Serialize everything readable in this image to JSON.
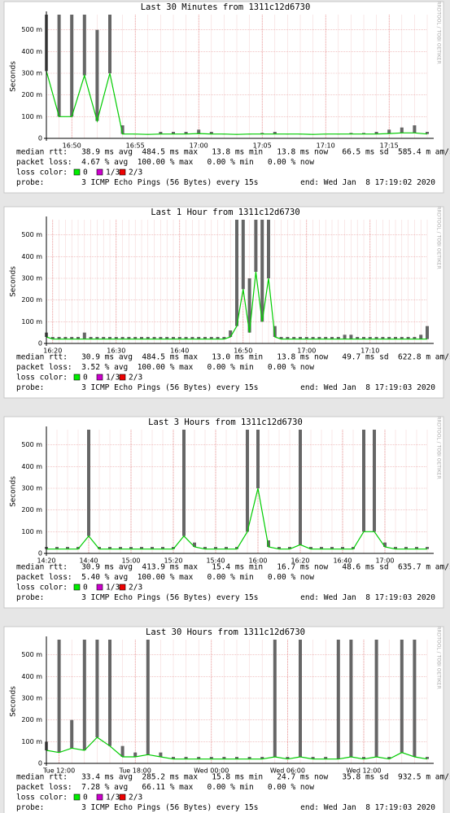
{
  "chart_data": [
    {
      "type": "line",
      "title": "Last 30 Minutes from 1311c12d6730",
      "ylabel": "Seconds",
      "watermark": "RRDTOOL / TOBI OETIKER",
      "categories": [
        null,
        null,
        "16:50",
        null,
        null,
        null,
        null,
        "16:55",
        null,
        null,
        null,
        null,
        "17:00",
        null,
        null,
        null,
        null,
        "17:05",
        null,
        null,
        null,
        null,
        "17:10",
        null,
        null,
        null,
        null,
        "17:15",
        null,
        null,
        null
      ],
      "series": [
        {
          "color": "#00cc00",
          "values": [
            0.31,
            0.1,
            0.1,
            0.29,
            0.08,
            0.3,
            0.02,
            0.02,
            0.018,
            0.02,
            0.02,
            0.02,
            0.022,
            0.02,
            0.02,
            0.018,
            0.02,
            0.02,
            0.02,
            0.02,
            0.02,
            0.018,
            0.02,
            0.02,
            0.02,
            0.02,
            0.02,
            0.022,
            0.025,
            0.025,
            0.02
          ]
        }
      ],
      "smoke": {
        "color": "#666666",
        "values": [
          0.57,
          0.57,
          0.57,
          0.57,
          0.5,
          0.57,
          0.06,
          0.02,
          0.02,
          0.03,
          0.03,
          0.03,
          0.04,
          0.03,
          0.02,
          0.02,
          0.02,
          0.025,
          0.03,
          0.02,
          0.02,
          0.02,
          0.02,
          0.02,
          0.025,
          0.025,
          0.03,
          0.04,
          0.05,
          0.06,
          0.03
        ]
      },
      "ylim": [
        0,
        0.57
      ],
      "yticks": [
        0,
        {
          "value": 0.1,
          "label": "100 m"
        },
        {
          "value": 0.2,
          "label": "200 m"
        },
        {
          "value": 0.3,
          "label": "300 m"
        },
        {
          "value": 0.4,
          "label": "400 m"
        },
        {
          "value": 0.5,
          "label": "500 m"
        }
      ],
      "grid": true,
      "stats": [
        "median rtt:   38.9 ms avg  484.5 ms max   13.8 ms min   13.8 ms now   66.5 ms sd  585.4 m am/s",
        "packet loss:  4.67 % avg  100.00 % max   0.00 % min   0.00 % now"
      ],
      "loss_legend_label": "loss color:",
      "loss_legend": [
        {
          "label": "0",
          "color": "#00ee00"
        },
        {
          "label": "1/3",
          "color": "#cc00cc"
        },
        {
          "label": "2/3",
          "color": "#ee0000"
        }
      ],
      "probe": "probe:        3 ICMP Echo Pings (56 Bytes) every 15s",
      "end": "end: Wed Jan  8 17:19:02 2020"
    },
    {
      "type": "line",
      "title": "Last 1 Hour from 1311c12d6730",
      "ylabel": "Seconds",
      "watermark": "RRDTOOL / TOBI OETIKER",
      "categories": [
        null,
        "16:20",
        null,
        null,
        null,
        null,
        null,
        null,
        null,
        null,
        null,
        "16:30",
        null,
        null,
        null,
        null,
        null,
        null,
        null,
        null,
        null,
        "16:40",
        null,
        null,
        null,
        null,
        null,
        null,
        null,
        null,
        null,
        "16:50",
        null,
        null,
        null,
        null,
        null,
        null,
        null,
        null,
        null,
        "17:00",
        null,
        null,
        null,
        null,
        null,
        null,
        null,
        null,
        null,
        "17:10",
        null,
        null,
        null,
        null,
        null,
        null,
        null,
        null,
        null
      ],
      "series": [
        {
          "color": "#00cc00",
          "values": [
            0.03,
            0.02,
            0.02,
            0.02,
            0.02,
            0.02,
            0.02,
            0.02,
            0.02,
            0.02,
            0.02,
            0.02,
            0.02,
            0.02,
            0.02,
            0.02,
            0.02,
            0.02,
            0.02,
            0.02,
            0.02,
            0.02,
            0.02,
            0.02,
            0.02,
            0.02,
            0.02,
            0.02,
            0.02,
            0.03,
            0.08,
            0.25,
            0.05,
            0.33,
            0.1,
            0.3,
            0.03,
            0.02,
            0.02,
            0.02,
            0.02,
            0.02,
            0.02,
            0.02,
            0.02,
            0.02,
            0.02,
            0.02,
            0.02,
            0.02,
            0.02,
            0.02,
            0.02,
            0.02,
            0.02,
            0.02,
            0.02,
            0.02,
            0.02,
            0.02,
            0.02
          ]
        }
      ],
      "smoke": {
        "color": "#666666",
        "values": [
          0.05,
          0.03,
          0.03,
          0.03,
          0.03,
          0.03,
          0.05,
          0.03,
          0.03,
          0.03,
          0.03,
          0.03,
          0.03,
          0.03,
          0.03,
          0.03,
          0.03,
          0.03,
          0.03,
          0.03,
          0.03,
          0.03,
          0.03,
          0.03,
          0.03,
          0.03,
          0.03,
          0.03,
          0.03,
          0.06,
          0.57,
          0.57,
          0.3,
          0.57,
          0.57,
          0.57,
          0.08,
          0.03,
          0.03,
          0.03,
          0.03,
          0.03,
          0.03,
          0.03,
          0.03,
          0.03,
          0.03,
          0.04,
          0.04,
          0.03,
          0.03,
          0.03,
          0.03,
          0.03,
          0.03,
          0.03,
          0.03,
          0.03,
          0.03,
          0.04,
          0.08
        ]
      },
      "ylim": [
        0,
        0.57
      ],
      "yticks": [
        0,
        {
          "value": 0.1,
          "label": "100 m"
        },
        {
          "value": 0.2,
          "label": "200 m"
        },
        {
          "value": 0.3,
          "label": "300 m"
        },
        {
          "value": 0.4,
          "label": "400 m"
        },
        {
          "value": 0.5,
          "label": "500 m"
        }
      ],
      "grid": true,
      "stats": [
        "median rtt:   30.9 ms avg  484.5 ms max   13.0 ms min   13.8 ms now   49.7 ms sd  622.8 m am/s",
        "packet loss:  3.52 % avg  100.00 % max   0.00 % min   0.00 % now"
      ],
      "loss_legend_label": "loss color:",
      "loss_legend": [
        {
          "label": "0",
          "color": "#00ee00"
        },
        {
          "label": "1/3",
          "color": "#cc00cc"
        },
        {
          "label": "2/3",
          "color": "#ee0000"
        }
      ],
      "probe": "probe:        3 ICMP Echo Pings (56 Bytes) every 15s",
      "end": "end: Wed Jan  8 17:19:03 2020"
    },
    {
      "type": "line",
      "title": "Last 3 Hours from 1311c12d6730",
      "ylabel": "Seconds",
      "watermark": "RRDTOOL / TOBI OETIKER",
      "categories": [
        "14:20",
        null,
        null,
        null,
        "14:40",
        null,
        null,
        null,
        "15:00",
        null,
        null,
        null,
        "15:20",
        null,
        null,
        null,
        "15:40",
        null,
        null,
        null,
        "16:00",
        null,
        null,
        null,
        "16:20",
        null,
        null,
        null,
        "16:40",
        null,
        null,
        null,
        "17:00",
        null,
        null,
        null,
        null
      ],
      "series": [
        {
          "color": "#00cc00",
          "values": [
            0.02,
            0.02,
            0.02,
            0.02,
            0.08,
            0.02,
            0.02,
            0.02,
            0.02,
            0.02,
            0.02,
            0.02,
            0.02,
            0.08,
            0.03,
            0.02,
            0.02,
            0.02,
            0.02,
            0.1,
            0.3,
            0.03,
            0.02,
            0.02,
            0.04,
            0.02,
            0.02,
            0.02,
            0.02,
            0.02,
            0.1,
            0.1,
            0.03,
            0.02,
            0.02,
            0.02,
            0.02
          ]
        }
      ],
      "smoke": {
        "color": "#666666",
        "values": [
          0.03,
          0.03,
          0.03,
          0.03,
          0.57,
          0.03,
          0.03,
          0.03,
          0.03,
          0.03,
          0.03,
          0.03,
          0.03,
          0.57,
          0.05,
          0.03,
          0.03,
          0.03,
          0.03,
          0.57,
          0.57,
          0.06,
          0.03,
          0.03,
          0.57,
          0.03,
          0.03,
          0.03,
          0.03,
          0.03,
          0.57,
          0.57,
          0.05,
          0.03,
          0.03,
          0.03,
          0.03
        ]
      },
      "ylim": [
        0,
        0.57
      ],
      "yticks": [
        0,
        {
          "value": 0.1,
          "label": "100 m"
        },
        {
          "value": 0.2,
          "label": "200 m"
        },
        {
          "value": 0.3,
          "label": "300 m"
        },
        {
          "value": 0.4,
          "label": "400 m"
        },
        {
          "value": 0.5,
          "label": "500 m"
        }
      ],
      "grid": true,
      "stats": [
        "median rtt:   30.9 ms avg  413.9 ms max   15.4 ms min   16.7 ms now   48.6 ms sd  635.7 m am/s",
        "packet loss:  5.40 % avg  100.00 % max   0.00 % min   0.00 % now"
      ],
      "loss_legend_label": "loss color:",
      "loss_legend": [
        {
          "label": "0",
          "color": "#00ee00"
        },
        {
          "label": "1/3",
          "color": "#cc00cc"
        },
        {
          "label": "2/3",
          "color": "#ee0000"
        }
      ],
      "probe": "probe:        3 ICMP Echo Pings (56 Bytes) every 15s",
      "end": "end: Wed Jan  8 17:19:03 2020"
    },
    {
      "type": "line",
      "title": "Last 30 Hours from 1311c12d6730",
      "ylabel": "Seconds",
      "watermark": "RRDTOOL / TOBI OETIKER",
      "categories": [
        null,
        "Tue 12:00",
        null,
        null,
        null,
        null,
        null,
        "Tue 18:00",
        null,
        null,
        null,
        null,
        null,
        "Wed 00:00",
        null,
        null,
        null,
        null,
        null,
        "Wed 06:00",
        null,
        null,
        null,
        null,
        null,
        "Wed 12:00",
        null,
        null,
        null,
        null,
        null
      ],
      "series": [
        {
          "color": "#00cc00",
          "values": [
            0.06,
            0.05,
            0.07,
            0.06,
            0.12,
            0.08,
            0.03,
            0.03,
            0.04,
            0.03,
            0.02,
            0.02,
            0.02,
            0.02,
            0.02,
            0.02,
            0.02,
            0.02,
            0.03,
            0.02,
            0.03,
            0.02,
            0.02,
            0.02,
            0.03,
            0.02,
            0.03,
            0.02,
            0.05,
            0.03,
            0.02
          ]
        }
      ],
      "smoke": {
        "color": "#666666",
        "values": [
          0.1,
          0.57,
          0.2,
          0.57,
          0.57,
          0.57,
          0.08,
          0.05,
          0.57,
          0.05,
          0.03,
          0.03,
          0.03,
          0.03,
          0.03,
          0.03,
          0.03,
          0.03,
          0.57,
          0.03,
          0.57,
          0.03,
          0.03,
          0.57,
          0.57,
          0.03,
          0.57,
          0.03,
          0.57,
          0.57,
          0.03
        ]
      },
      "ylim": [
        0,
        0.57
      ],
      "yticks": [
        0,
        {
          "value": 0.1,
          "label": "100 m"
        },
        {
          "value": 0.2,
          "label": "200 m"
        },
        {
          "value": 0.3,
          "label": "300 m"
        },
        {
          "value": 0.4,
          "label": "400 m"
        },
        {
          "value": 0.5,
          "label": "500 m"
        }
      ],
      "grid": true,
      "stats": [
        "median rtt:   33.4 ms avg  285.2 ms max   15.8 ms min   24.7 ms now   35.8 ms sd  932.5 m am/s",
        "packet loss:  7.28 % avg   66.11 % max   0.00 % min   0.00 % now"
      ],
      "loss_legend_label": "loss color:",
      "loss_legend": [
        {
          "label": "0",
          "color": "#00ee00"
        },
        {
          "label": "1/3",
          "color": "#cc00cc"
        },
        {
          "label": "2/3",
          "color": "#ee0000"
        }
      ],
      "probe": "probe:        3 ICMP Echo Pings (56 Bytes) every 15s",
      "end": "end: Wed Jan  8 17:19:03 2020"
    }
  ]
}
